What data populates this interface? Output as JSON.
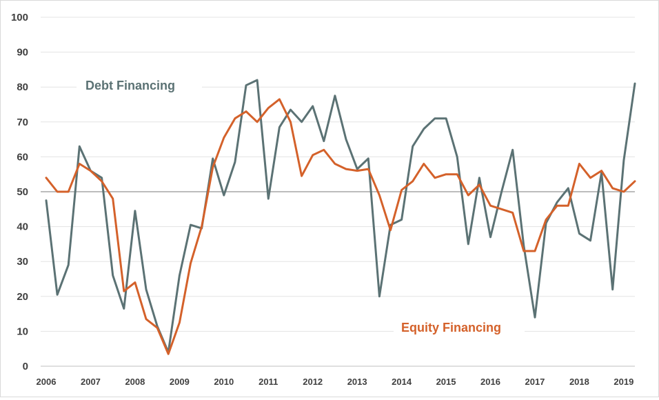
{
  "chart_data": {
    "type": "line",
    "y_ticks": [
      "0",
      "10",
      "20",
      "30",
      "40",
      "50",
      "60",
      "70",
      "80",
      "90",
      "100"
    ],
    "x_ticks": [
      "2006",
      "2007",
      "2008",
      "2009",
      "2010",
      "2011",
      "2012",
      "2013",
      "2014",
      "2015",
      "2016",
      "2017",
      "2018",
      "2019"
    ],
    "ylim": [
      0,
      100
    ],
    "xlim": [
      2006,
      2019.25
    ],
    "grid": true,
    "reference_line": 50,
    "series": [
      {
        "name": "Debt Financing",
        "color": "#5b7274",
        "points": [
          [
            2006.0,
            47.5
          ],
          [
            2006.25,
            20.5
          ],
          [
            2006.5,
            29.0
          ],
          [
            2006.75,
            63.0
          ],
          [
            2007.0,
            56.0
          ],
          [
            2007.25,
            54.0
          ],
          [
            2007.5,
            26.0
          ],
          [
            2007.75,
            16.5
          ],
          [
            2008.0,
            44.5
          ],
          [
            2008.25,
            22.0
          ],
          [
            2008.5,
            11.5
          ],
          [
            2008.75,
            4.0
          ],
          [
            2009.0,
            26.0
          ],
          [
            2009.25,
            40.5
          ],
          [
            2009.5,
            39.5
          ],
          [
            2009.75,
            59.5
          ],
          [
            2010.0,
            49.0
          ],
          [
            2010.25,
            58.5
          ],
          [
            2010.5,
            80.5
          ],
          [
            2010.75,
            82.0
          ],
          [
            2011.0,
            48.0
          ],
          [
            2011.25,
            68.5
          ],
          [
            2011.5,
            73.5
          ],
          [
            2011.75,
            70.0
          ],
          [
            2012.0,
            74.5
          ],
          [
            2012.25,
            64.5
          ],
          [
            2012.5,
            77.5
          ],
          [
            2012.75,
            65.0
          ],
          [
            2013.0,
            56.5
          ],
          [
            2013.25,
            59.5
          ],
          [
            2013.5,
            20.0
          ],
          [
            2013.75,
            40.5
          ],
          [
            2014.0,
            42.0
          ],
          [
            2014.25,
            63.0
          ],
          [
            2014.5,
            68.0
          ],
          [
            2014.75,
            71.0
          ],
          [
            2015.0,
            71.0
          ],
          [
            2015.25,
            60.0
          ],
          [
            2015.5,
            35.0
          ],
          [
            2015.75,
            54.0
          ],
          [
            2016.0,
            37.0
          ],
          [
            2016.25,
            50.0
          ],
          [
            2016.5,
            62.0
          ],
          [
            2016.75,
            34.5
          ],
          [
            2017.0,
            14.0
          ],
          [
            2017.25,
            41.0
          ],
          [
            2017.5,
            47.0
          ],
          [
            2017.75,
            51.0
          ],
          [
            2018.0,
            38.0
          ],
          [
            2018.25,
            36.0
          ],
          [
            2018.5,
            55.5
          ],
          [
            2018.75,
            22.0
          ],
          [
            2019.0,
            59.0
          ],
          [
            2019.25,
            81.0
          ]
        ]
      },
      {
        "name": "Equity Financing",
        "color": "#d4612a",
        "points": [
          [
            2006.0,
            54.0
          ],
          [
            2006.25,
            50.0
          ],
          [
            2006.5,
            50.0
          ],
          [
            2006.75,
            58.0
          ],
          [
            2007.0,
            56.0
          ],
          [
            2007.25,
            53.0
          ],
          [
            2007.5,
            48.0
          ],
          [
            2007.75,
            21.5
          ],
          [
            2008.0,
            24.0
          ],
          [
            2008.25,
            13.5
          ],
          [
            2008.5,
            11.0
          ],
          [
            2008.75,
            3.5
          ],
          [
            2009.0,
            12.5
          ],
          [
            2009.25,
            29.5
          ],
          [
            2009.5,
            40.0
          ],
          [
            2009.75,
            57.0
          ],
          [
            2010.0,
            65.5
          ],
          [
            2010.25,
            71.0
          ],
          [
            2010.5,
            73.0
          ],
          [
            2010.75,
            70.0
          ],
          [
            2011.0,
            74.0
          ],
          [
            2011.25,
            76.5
          ],
          [
            2011.5,
            70.0
          ],
          [
            2011.75,
            54.5
          ],
          [
            2012.0,
            60.5
          ],
          [
            2012.25,
            62.0
          ],
          [
            2012.5,
            58.0
          ],
          [
            2012.75,
            56.5
          ],
          [
            2013.0,
            56.0
          ],
          [
            2013.25,
            56.5
          ],
          [
            2013.5,
            49.0
          ],
          [
            2013.75,
            39.0
          ],
          [
            2014.0,
            50.5
          ],
          [
            2014.25,
            53.0
          ],
          [
            2014.5,
            58.0
          ],
          [
            2014.75,
            54.0
          ],
          [
            2015.0,
            55.0
          ],
          [
            2015.25,
            55.0
          ],
          [
            2015.5,
            49.0
          ],
          [
            2015.75,
            52.0
          ],
          [
            2016.0,
            46.0
          ],
          [
            2016.25,
            45.0
          ],
          [
            2016.5,
            44.0
          ],
          [
            2016.75,
            33.0
          ],
          [
            2017.0,
            33.0
          ],
          [
            2017.25,
            42.0
          ],
          [
            2017.5,
            46.0
          ],
          [
            2017.75,
            46.0
          ],
          [
            2018.0,
            58.0
          ],
          [
            2018.25,
            54.0
          ],
          [
            2018.5,
            56.0
          ],
          [
            2018.75,
            51.0
          ],
          [
            2019.0,
            50.0
          ],
          [
            2019.25,
            53.0
          ]
        ]
      }
    ]
  }
}
